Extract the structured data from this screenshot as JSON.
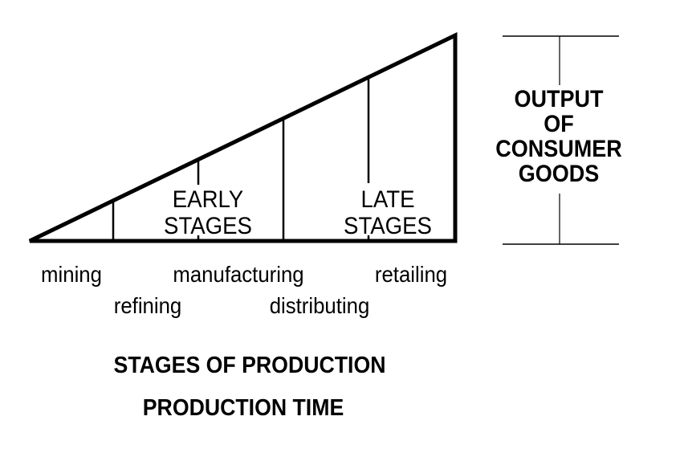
{
  "triangle": {
    "early_label": [
      "EARLY",
      "STAGES"
    ],
    "late_label": [
      "LATE",
      "STAGES"
    ]
  },
  "stages": [
    "mining",
    "refining",
    "manufacturing",
    "distributing",
    "retailing"
  ],
  "output_label": [
    "OUTPUT",
    "OF",
    "CONSUMER",
    "GOODS"
  ],
  "titles": {
    "stages_of_production": "STAGES OF PRODUCTION",
    "production_time": "PRODUCTION TIME"
  }
}
